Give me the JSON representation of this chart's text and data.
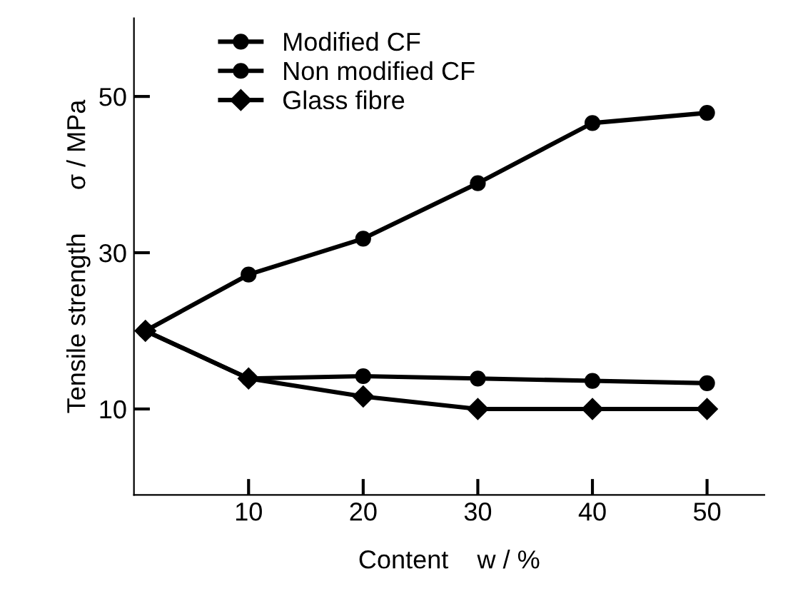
{
  "chart_data": {
    "type": "line",
    "xlabel": "Content    w / %",
    "ylabel": "Tensile strength      σ / MPa",
    "xlim": [
      0,
      55
    ],
    "xticks": [
      10,
      20,
      30,
      40,
      50
    ],
    "ylim": [
      -1,
      60
    ],
    "yticks": [
      10,
      30,
      50
    ],
    "grid": false,
    "legend": "top left",
    "line_style": "solid",
    "series": [
      {
        "name": "Modified CF",
        "color": "#000000",
        "marker": "circle",
        "x": [
          1,
          10,
          20,
          30,
          40,
          50
        ],
        "values": [
          20,
          27.2,
          31.8,
          38.9,
          46.6,
          47.9
        ]
      },
      {
        "name": "Non modified CF",
        "color": "#000000",
        "marker": "circle",
        "x": [
          1,
          10,
          20,
          30,
          40,
          50
        ],
        "values": [
          20,
          13.9,
          14.2,
          13.9,
          13.6,
          13.3
        ]
      },
      {
        "name": "Glass fibre",
        "color": "#000000",
        "marker": "diamond",
        "x": [
          1,
          10,
          20,
          30,
          40,
          50
        ],
        "values": [
          20,
          13.9,
          11.6,
          10,
          10,
          10
        ]
      }
    ]
  }
}
